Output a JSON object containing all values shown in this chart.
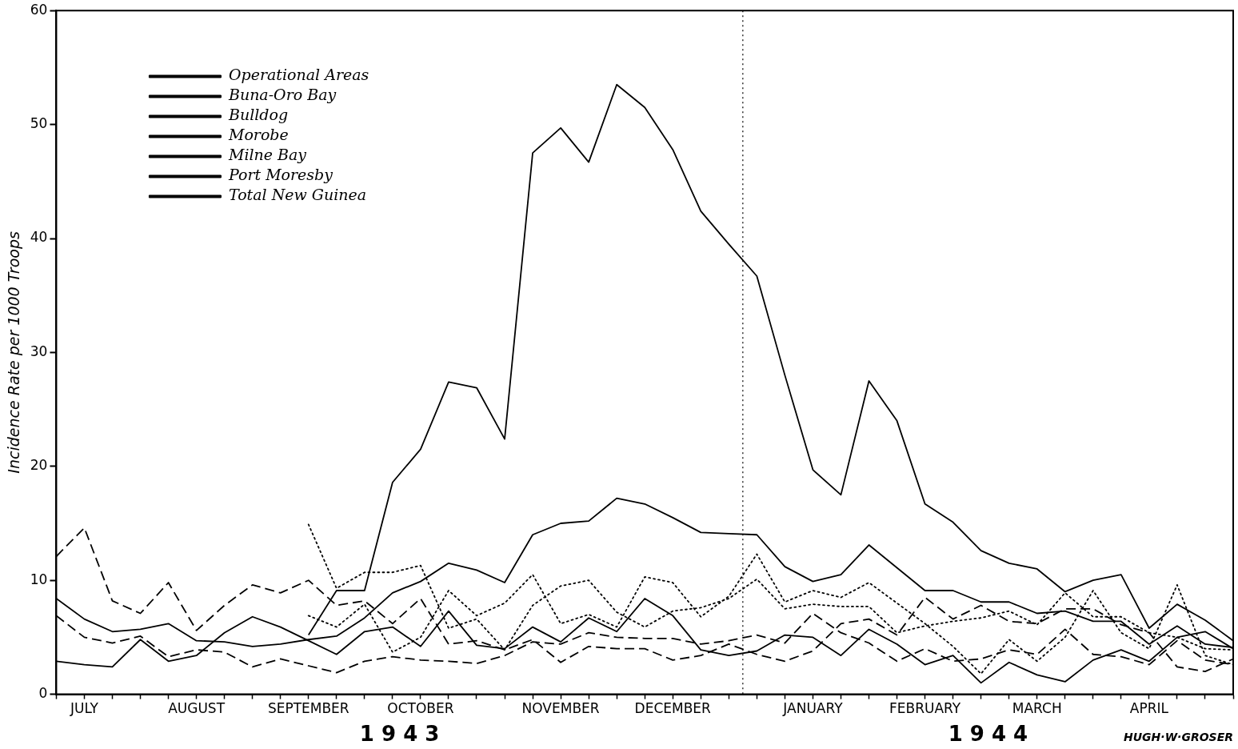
{
  "chart_data": {
    "type": "line",
    "ylabel": "Incidence Rate per 1000 Troops",
    "categories": [
      null,
      "JULY",
      null,
      null,
      null,
      "AUGUST",
      null,
      null,
      null,
      "SEPTEMBER",
      null,
      null,
      null,
      "OCTOBER",
      null,
      null,
      null,
      null,
      "NOVEMBER",
      null,
      null,
      null,
      "DECEMBER",
      null,
      null,
      null,
      null,
      "JANUARY",
      null,
      null,
      null,
      "FEBRUARY",
      null,
      null,
      null,
      "MARCH",
      null,
      null,
      null,
      "APRIL",
      null,
      null,
      null
    ],
    "ylim": [
      0,
      60
    ],
    "yticks": [
      0,
      10,
      20,
      30,
      40,
      50,
      60
    ],
    "grid": false,
    "legend": "top left",
    "marker": "none",
    "annotations": [
      "1 9 4 3",
      "1 9 4 4",
      "HUGH·W·GROSER"
    ],
    "series": [
      {
        "name": "Operational Areas",
        "color": "#000000",
        "line_style": "solid",
        "values": [
          null,
          null,
          null,
          null,
          null,
          null,
          null,
          null,
          null,
          5.2,
          9.1,
          9.1,
          18.6,
          21.5,
          27.4,
          26.9,
          22.4,
          47.5,
          49.7,
          46.7,
          53.5,
          51.5,
          47.8,
          42.4,
          39.5,
          36.7,
          28,
          19.7,
          17.5,
          27.5,
          24,
          16.7,
          15.1,
          12.6,
          11.5,
          11,
          9,
          10,
          10.5,
          5.8,
          7.9,
          6.5,
          4.7
        ]
      },
      {
        "name": "Buna-Oro Bay",
        "color": "#000000",
        "line_style": "dashed",
        "values": [
          12.1,
          14.6,
          8.2,
          7.1,
          9.8,
          5.6,
          7.8,
          9.6,
          8.9,
          10,
          7.8,
          8.2,
          6.2,
          8.4,
          4.4,
          4.7,
          3.9,
          4.8,
          2.8,
          4.2,
          4,
          4,
          3,
          3.4,
          4.4,
          3.5,
          2.9,
          3.8,
          6.2,
          6.6,
          5.2,
          8.5,
          6.6,
          7.8,
          6.4,
          6.2,
          7.5,
          7.5,
          6.1,
          5.4,
          2.4,
          2,
          3.1
        ]
      },
      {
        "name": "Bulldog",
        "color": "#000000",
        "line_style": "dotted",
        "values": [
          null,
          null,
          null,
          null,
          null,
          null,
          null,
          null,
          null,
          6.9,
          5.9,
          7.9,
          3.7,
          5,
          9.1,
          6.9,
          8,
          10.5,
          6.2,
          7,
          5.9,
          10.3,
          9.8,
          6.8,
          8.6,
          12.3,
          8.1,
          9.1,
          8.5,
          9.8,
          8,
          6.2,
          4.2,
          1.8,
          4.8,
          2.9,
          5,
          9.1,
          5.4,
          4,
          9.6,
          3.4,
          2.6
        ]
      },
      {
        "name": "Morobe",
        "color": "#000000",
        "line_style": "dotted",
        "values": [
          null,
          null,
          null,
          null,
          null,
          null,
          null,
          null,
          null,
          14.9,
          9.3,
          10.7,
          10.7,
          11.3,
          5.8,
          6.6,
          3.9,
          7.8,
          9.5,
          10,
          7.2,
          5.9,
          7.3,
          7.6,
          8.4,
          10.1,
          7.5,
          7.9,
          7.7,
          7.7,
          5.4,
          6,
          6.4,
          6.7,
          7.3,
          6.1,
          8.9,
          6.8,
          6.8,
          5.4,
          5,
          4,
          3.9
        ]
      },
      {
        "name": "Milne Bay",
        "color": "#000000",
        "line_style": "solid",
        "values": [
          2.9,
          2.6,
          2.4,
          4.8,
          2.9,
          3.4,
          5.4,
          6.8,
          5.9,
          4.7,
          3.5,
          5.5,
          5.9,
          4.2,
          7.3,
          4.3,
          4,
          5.9,
          4.6,
          6.7,
          5.5,
          8.4,
          6.9,
          3.9,
          3.4,
          3.8,
          5.2,
          5,
          3.4,
          5.7,
          4.4,
          2.6,
          3.4,
          1,
          2.8,
          1.7,
          1.1,
          3,
          3.9,
          2.9,
          5,
          5.5,
          4
        ]
      },
      {
        "name": "Port Moresby",
        "color": "#000000",
        "line_style": "dashed",
        "values": [
          6.9,
          5,
          4.5,
          5.1,
          3.3,
          3.9,
          3.7,
          2.4,
          3.1,
          2.5,
          1.9,
          2.9,
          3.3,
          3,
          2.9,
          2.7,
          3.4,
          4.6,
          4.4,
          5.4,
          5,
          4.9,
          4.9,
          4.4,
          4.7,
          5.2,
          4.5,
          7.1,
          5.4,
          4.5,
          2.9,
          4,
          2.9,
          3.1,
          3.9,
          3.5,
          5.7,
          3.5,
          3.3,
          2.6,
          4.7,
          3,
          2.6
        ]
      },
      {
        "name": "Total New Guinea",
        "color": "#000000",
        "line_style": "solid",
        "values": [
          8.4,
          6.6,
          5.5,
          5.7,
          6.2,
          4.7,
          4.6,
          4.2,
          4.4,
          4.8,
          5.1,
          6.7,
          8.9,
          9.9,
          11.5,
          10.9,
          9.8,
          14,
          15,
          15.2,
          17.2,
          16.7,
          15.5,
          14.2,
          14.1,
          14,
          11.2,
          9.9,
          10.5,
          13.1,
          11.1,
          9.1,
          9.1,
          8.1,
          8.1,
          7.1,
          7.3,
          6.4,
          6.4,
          4.4,
          6,
          4.4,
          4.1
        ]
      }
    ]
  }
}
